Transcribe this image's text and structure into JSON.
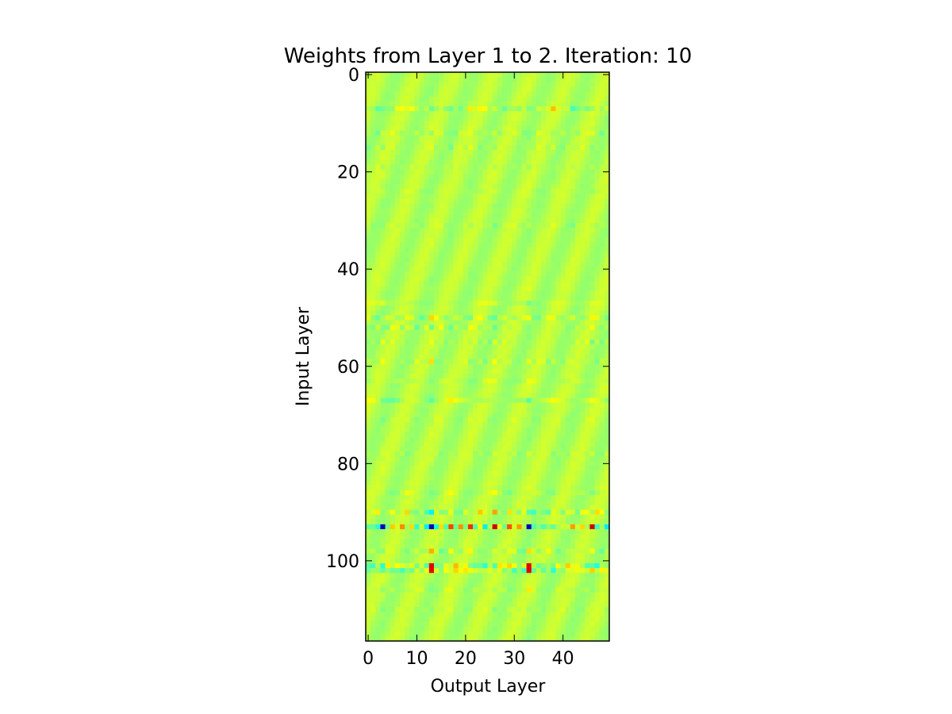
{
  "chart_data": {
    "type": "heatmap",
    "title": "Weights from Layer 1 to 2. Iteration: 10",
    "xlabel": "Output Layer",
    "ylabel": "Input Layer",
    "x_ticks": [
      0,
      10,
      20,
      30,
      40
    ],
    "y_ticks": [
      0,
      20,
      40,
      60,
      80,
      100
    ],
    "xlim": [
      -0.5,
      49.5
    ],
    "ylim": [
      116.5,
      -0.5
    ],
    "n_rows": 117,
    "n_cols": 50,
    "colormap": "jet",
    "background_value": 0.55,
    "row_activity": [
      {
        "row": 7,
        "amp": 0.35
      },
      {
        "row": 12,
        "amp": 0.2
      },
      {
        "row": 15,
        "amp": 0.15
      },
      {
        "row": 19,
        "amp": 0.1
      },
      {
        "row": 24,
        "amp": 0.08
      },
      {
        "row": 31,
        "amp": 0.12
      },
      {
        "row": 47,
        "amp": 0.15
      },
      {
        "row": 50,
        "amp": 0.25
      },
      {
        "row": 52,
        "amp": 0.3
      },
      {
        "row": 55,
        "amp": 0.15
      },
      {
        "row": 59,
        "amp": 0.2
      },
      {
        "row": 63,
        "amp": 0.15
      },
      {
        "row": 67,
        "amp": 0.3
      },
      {
        "row": 71,
        "amp": 0.1
      },
      {
        "row": 78,
        "amp": 0.12
      },
      {
        "row": 86,
        "amp": 0.15
      },
      {
        "row": 90,
        "amp": 0.5
      },
      {
        "row": 93,
        "amp": 1.0
      },
      {
        "row": 98,
        "amp": 0.3
      },
      {
        "row": 101,
        "amp": 0.6
      },
      {
        "row": 102,
        "amp": 0.5
      },
      {
        "row": 106,
        "amp": 0.15
      },
      {
        "row": 110,
        "amp": 0.12
      }
    ],
    "column_hotspots": [
      {
        "col": 3,
        "amp": 0.7
      },
      {
        "col": 8,
        "amp": 0.3
      },
      {
        "col": 13,
        "amp": 1.0
      },
      {
        "col": 17,
        "amp": 0.4
      },
      {
        "col": 21,
        "amp": 0.5
      },
      {
        "col": 26,
        "amp": 0.6
      },
      {
        "col": 29,
        "amp": 0.4
      },
      {
        "col": 33,
        "amp": 1.0
      },
      {
        "col": 38,
        "amp": 0.4
      },
      {
        "col": 42,
        "amp": 0.5
      },
      {
        "col": 46,
        "amp": 0.7
      }
    ]
  }
}
